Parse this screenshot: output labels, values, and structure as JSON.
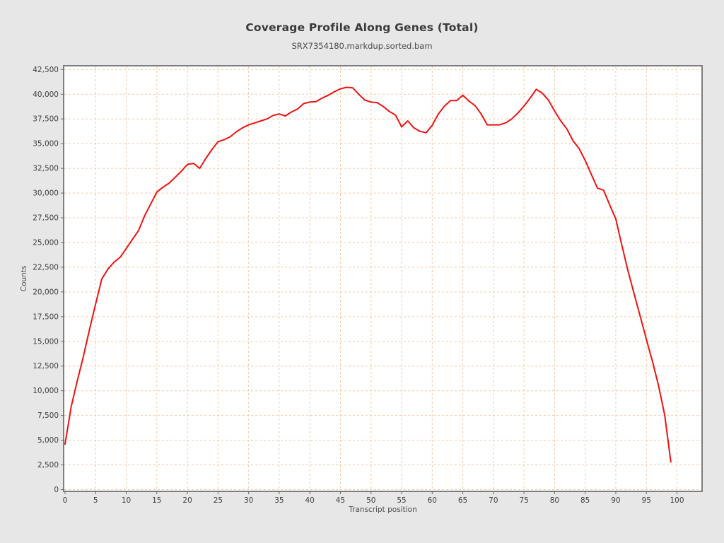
{
  "title": "Coverage Profile Along Genes (Total)",
  "subtitle": "SRX7354180.markdup.sorted.bam",
  "colors": {
    "page_background": "#e7e7e7",
    "plot_background": "#ffffff",
    "plot_border": "#7e7e7e",
    "gridline": "#f6c9a0",
    "series_line": "#ee1111",
    "tick_mark": "#666666",
    "tick_label": "#3f3f3f",
    "title_text": "#3a3a3a"
  },
  "chart_data": {
    "type": "line",
    "title": "Coverage Profile Along Genes (Total)",
    "subtitle": "SRX7354180.markdup.sorted.bam",
    "xlabel": "Transcript position",
    "ylabel": "Counts",
    "xlim": [
      0,
      104
    ],
    "ylim": [
      0,
      42500
    ],
    "grid": "dashed-peach-both-axes",
    "legend_position": "none",
    "xticks": [
      0,
      5,
      10,
      15,
      20,
      25,
      30,
      35,
      40,
      45,
      50,
      55,
      60,
      65,
      70,
      75,
      80,
      85,
      90,
      95,
      100
    ],
    "yticks": [
      0,
      2500,
      5000,
      7500,
      10000,
      12500,
      15000,
      17500,
      20000,
      22500,
      25000,
      27500,
      30000,
      32500,
      35000,
      37500,
      40000,
      42500
    ],
    "ytick_labels": [
      "0",
      "2,500",
      "5,000",
      "7,500",
      "10,000",
      "12,500",
      "15,000",
      "17,500",
      "20,000",
      "22,500",
      "25,000",
      "27,500",
      "30,000",
      "32,500",
      "35,000",
      "37,500",
      "40,000",
      "42,500"
    ],
    "x": [
      0,
      1,
      2,
      3,
      4,
      5,
      6,
      7,
      8,
      9,
      10,
      11,
      12,
      13,
      14,
      15,
      16,
      17,
      18,
      19,
      20,
      21,
      22,
      23,
      24,
      25,
      26,
      27,
      28,
      29,
      30,
      31,
      32,
      33,
      34,
      35,
      36,
      37,
      38,
      39,
      40,
      41,
      42,
      43,
      44,
      45,
      46,
      47,
      48,
      49,
      50,
      51,
      52,
      53,
      54,
      55,
      56,
      57,
      58,
      59,
      60,
      61,
      62,
      63,
      64,
      65,
      66,
      67,
      68,
      69,
      70,
      71,
      72,
      73,
      74,
      75,
      76,
      77,
      78,
      79,
      80,
      81,
      82,
      83,
      84,
      85,
      86,
      87,
      88,
      89,
      90,
      91,
      92,
      93,
      94,
      95,
      96,
      97,
      98,
      99
    ],
    "series": [
      {
        "name": "Total",
        "color": "#ee1111",
        "values": [
          4600,
          8400,
          11000,
          13500,
          16200,
          18800,
          21300,
          22300,
          23000,
          23500,
          24400,
          25300,
          26200,
          27700,
          28900,
          30100,
          30600,
          31000,
          31600,
          32200,
          32900,
          33000,
          32500,
          33500,
          34400,
          35200,
          35400,
          35700,
          36200,
          36600,
          36900,
          37100,
          37300,
          37500,
          37850,
          38000,
          37800,
          38200,
          38500,
          39050,
          39200,
          39250,
          39600,
          39900,
          40250,
          40550,
          40700,
          40650,
          40000,
          39400,
          39200,
          39150,
          38750,
          38250,
          37900,
          36700,
          37300,
          36600,
          36250,
          36100,
          36850,
          38000,
          38800,
          39350,
          39350,
          39900,
          39300,
          38850,
          38000,
          36900,
          36900,
          36900,
          37100,
          37500,
          38100,
          38800,
          39600,
          40500,
          40100,
          39400,
          38300,
          37300,
          36500,
          35300,
          34500,
          33300,
          31900,
          30500,
          30300,
          28800,
          27400,
          24700,
          22100,
          19800,
          17500,
          15200,
          12950,
          10500,
          7500,
          2800
        ]
      }
    ]
  }
}
